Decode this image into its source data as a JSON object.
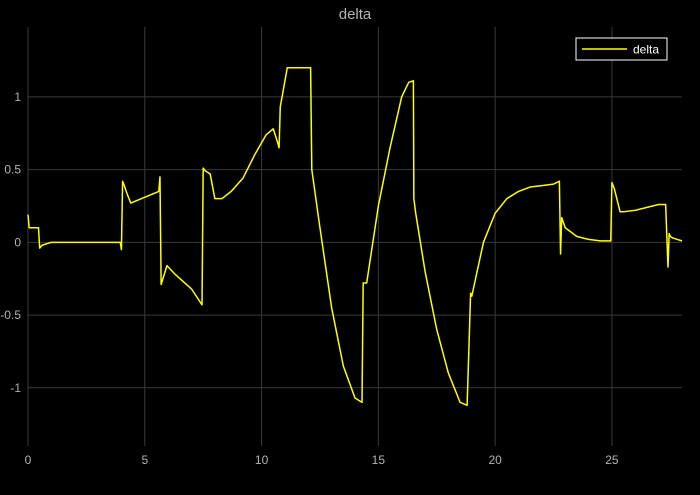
{
  "chart_data": {
    "type": "line",
    "title": "delta",
    "xlabel": "",
    "ylabel": "",
    "xlim": [
      0,
      28
    ],
    "ylim": [
      -1.4,
      1.48
    ],
    "xticks": [
      0,
      5,
      10,
      15,
      20,
      25
    ],
    "yticks": [
      -1,
      -0.5,
      0,
      0.5,
      1
    ],
    "xtick_labels": [
      "0",
      "5",
      "10",
      "15",
      "20",
      "25"
    ],
    "ytick_labels": [
      "-1",
      "-0.5",
      "0",
      "0.5",
      "1"
    ],
    "grid": true,
    "legend": {
      "position": "top-right",
      "entries": [
        "delta"
      ]
    },
    "colors": {
      "background": "#000000",
      "grid": "#3a3a3a",
      "series": "#ffff00",
      "text": "#b3b3b3"
    },
    "series": [
      {
        "name": "delta",
        "x": [
          0,
          0.05,
          0.45,
          0.5,
          0.6,
          0.8,
          1.0,
          1.2,
          2.0,
          3.0,
          3.95,
          4.0,
          4.05,
          4.1,
          4.25,
          4.4,
          5.6,
          5.65,
          5.7,
          5.95,
          6.3,
          7.0,
          7.45,
          7.5,
          7.6,
          7.7,
          7.8,
          8.0,
          8.3,
          8.7,
          9.2,
          9.7,
          10.2,
          10.5,
          10.7,
          10.75,
          10.8,
          11.1,
          12.1,
          12.15,
          12.5,
          13.0,
          13.5,
          14.0,
          14.3,
          14.35,
          14.5,
          15.0,
          15.5,
          16.0,
          16.3,
          16.5,
          16.52,
          16.6,
          17.0,
          17.5,
          18.0,
          18.5,
          18.8,
          18.95,
          19.0,
          19.5,
          20.0,
          20.5,
          21.0,
          21.5,
          22.0,
          22.5,
          22.75,
          22.8,
          22.85,
          23.0,
          23.5,
          24.0,
          24.5,
          24.95,
          25.0,
          25.1,
          25.35,
          25.5,
          26.0,
          26.5,
          27.0,
          27.3,
          27.4,
          27.45,
          27.5,
          27.6,
          27.8,
          28.0
        ],
        "y": [
          0.19,
          0.1,
          0.1,
          -0.04,
          -0.02,
          -0.01,
          0.0,
          0.0,
          0.0,
          0.0,
          0.0,
          -0.05,
          0.42,
          0.4,
          0.33,
          0.27,
          0.35,
          0.45,
          -0.29,
          -0.16,
          -0.22,
          -0.32,
          -0.43,
          0.51,
          0.49,
          0.48,
          0.47,
          0.3,
          0.3,
          0.35,
          0.44,
          0.6,
          0.74,
          0.78,
          0.68,
          0.65,
          0.93,
          1.2,
          1.2,
          0.5,
          0.1,
          -0.45,
          -0.85,
          -1.07,
          -1.1,
          -0.28,
          -0.28,
          0.25,
          0.65,
          1.0,
          1.1,
          1.11,
          0.3,
          0.2,
          -0.2,
          -0.6,
          -0.9,
          -1.1,
          -1.12,
          -0.35,
          -0.37,
          0.0,
          0.2,
          0.3,
          0.35,
          0.38,
          0.39,
          0.4,
          0.42,
          -0.08,
          0.17,
          0.1,
          0.04,
          0.02,
          0.01,
          0.01,
          0.41,
          0.37,
          0.21,
          0.21,
          0.22,
          0.24,
          0.26,
          0.26,
          -0.17,
          0.06,
          0.04,
          0.03,
          0.02,
          0.01
        ]
      }
    ]
  }
}
